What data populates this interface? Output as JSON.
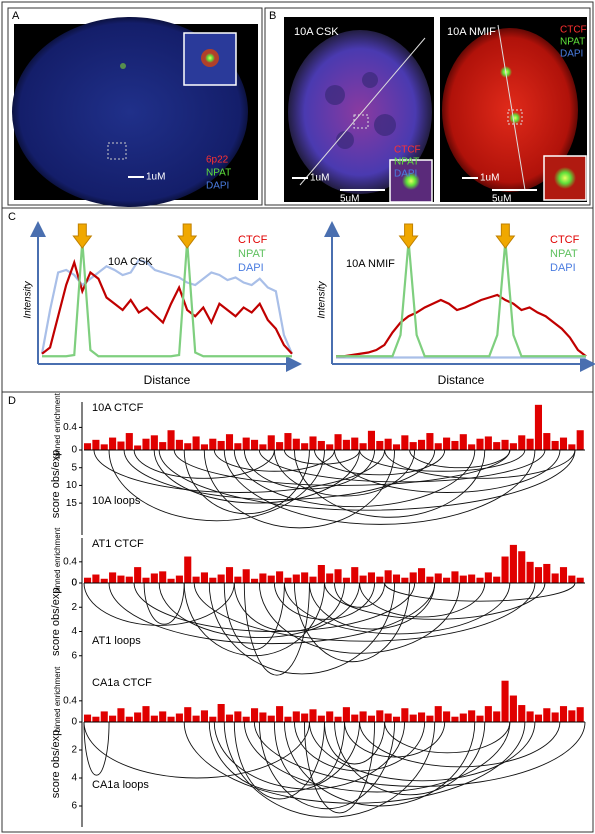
{
  "panel_a": {
    "label": "A",
    "channels": [
      "6p22",
      "NPAT",
      "DAPI"
    ],
    "scale_bar": "1uM"
  },
  "panel_b": {
    "label": "B",
    "images": [
      {
        "title": "10A CSK",
        "channels": [
          "CTCF",
          "NPAT",
          "DAPI"
        ],
        "scale_bars": [
          "1uM",
          "5uM"
        ]
      },
      {
        "title": "10A NMIF",
        "channels": [
          "CTCF",
          "NPAT",
          "DAPI"
        ],
        "scale_bars": [
          "1uM",
          "5uM"
        ]
      }
    ]
  },
  "panel_c": {
    "label": "C",
    "charts": [
      {
        "type": "line",
        "title": "10A CSK",
        "ylabel": "Intensity",
        "xlabel": "Distance",
        "xlim": [
          0,
          31
        ],
        "ylim": [
          0,
          100
        ],
        "x": [
          0,
          1,
          2,
          3,
          4,
          5,
          6,
          7,
          8,
          9,
          10,
          11,
          12,
          13,
          14,
          15,
          16,
          17,
          18,
          19,
          20,
          21,
          22,
          23,
          24,
          25,
          26,
          27,
          28,
          29,
          30,
          31
        ],
        "series": [
          {
            "name": "CTCF",
            "color": "#c00000",
            "values": [
              5,
              10,
              35,
              60,
              78,
              55,
              70,
              65,
              50,
              45,
              40,
              48,
              38,
              42,
              36,
              30,
              45,
              58,
              40,
              35,
              42,
              30,
              45,
              40,
              35,
              42,
              38,
              45,
              32,
              25,
              12,
              5
            ]
          },
          {
            "name": "NPAT",
            "color": "#7fcf7f",
            "values": [
              3,
              3,
              3,
              3,
              4,
              95,
              8,
              3,
              3,
              3,
              3,
              3,
              3,
              3,
              3,
              3,
              3,
              4,
              95,
              6,
              3,
              3,
              3,
              3,
              3,
              3,
              3,
              3,
              3,
              3,
              3,
              3
            ]
          },
          {
            "name": "DAPI",
            "color": "#a9bfe8",
            "values": [
              5,
              40,
              70,
              72,
              68,
              60,
              65,
              70,
              75,
              72,
              68,
              70,
              80,
              78,
              72,
              70,
              68,
              66,
              62,
              60,
              65,
              70,
              68,
              64,
              66,
              62,
              60,
              65,
              58,
              55,
              20,
              5
            ]
          }
        ]
      },
      {
        "type": "line",
        "title": "10A NMIF",
        "ylabel": "Intensity",
        "xlabel": "Distance",
        "xlim": [
          0,
          31
        ],
        "ylim": [
          0,
          100
        ],
        "x": [
          0,
          1,
          2,
          3,
          4,
          5,
          6,
          7,
          8,
          9,
          10,
          11,
          12,
          13,
          14,
          15,
          16,
          17,
          18,
          19,
          20,
          21,
          22,
          23,
          24,
          25,
          26,
          27,
          28,
          29,
          30,
          31
        ],
        "series": [
          {
            "name": "CTCF",
            "color": "#c00000",
            "values": [
              3,
              3,
              4,
              5,
              6,
              8,
              12,
              22,
              30,
              35,
              38,
              42,
              45,
              48,
              45,
              40,
              42,
              45,
              48,
              50,
              52,
              48,
              45,
              40,
              42,
              38,
              35,
              30,
              25,
              18,
              8,
              3
            ]
          },
          {
            "name": "NPAT",
            "color": "#7fcf7f",
            "values": [
              3,
              3,
              3,
              3,
              3,
              3,
              3,
              3,
              20,
              95,
              20,
              3,
              3,
              3,
              3,
              3,
              3,
              3,
              3,
              3,
              20,
              95,
              20,
              3,
              3,
              3,
              3,
              3,
              3,
              3,
              3,
              3
            ]
          },
          {
            "name": "DAPI",
            "color": "#a9bfe8",
            "values": [
              2,
              2,
              2,
              2,
              2,
              2,
              2,
              2,
              2,
              2,
              2,
              2,
              2,
              2,
              2,
              2,
              2,
              2,
              2,
              2,
              2,
              2,
              2,
              2,
              2,
              2,
              2,
              2,
              2,
              2,
              2,
              2
            ]
          }
        ]
      }
    ]
  },
  "panel_d": {
    "label": "D",
    "tracks": [
      {
        "enrichment": {
          "type": "bar",
          "title": "10A CTCF",
          "ylabel": "binned enrichment",
          "ylim": [
            0,
            0.85
          ],
          "yticks": [
            0.4,
            0
          ],
          "color": "#e00000",
          "values": [
            0.12,
            0.18,
            0.1,
            0.22,
            0.15,
            0.3,
            0.08,
            0.2,
            0.26,
            0.14,
            0.35,
            0.18,
            0.12,
            0.24,
            0.1,
            0.2,
            0.16,
            0.28,
            0.12,
            0.22,
            0.18,
            0.1,
            0.26,
            0.14,
            0.3,
            0.2,
            0.12,
            0.24,
            0.16,
            0.1,
            0.28,
            0.18,
            0.22,
            0.12,
            0.34,
            0.16,
            0.2,
            0.1,
            0.26,
            0.14,
            0.18,
            0.3,
            0.12,
            0.22,
            0.16,
            0.28,
            0.1,
            0.2,
            0.24,
            0.14,
            0.18,
            0.12,
            0.26,
            0.2,
            0.8,
            0.3,
            0.16,
            0.22,
            0.1,
            0.35
          ]
        },
        "loops": {
          "type": "arc",
          "title": "10A loops",
          "ylabel": "score obs/exp",
          "xlim": [
            0,
            100
          ],
          "ylim": [
            0,
            24
          ],
          "yticks": [
            5,
            10,
            15
          ],
          "loops": [
            {
              "start": 2,
              "end": 60,
              "score": 12
            },
            {
              "start": 5,
              "end": 48,
              "score": 20
            },
            {
              "start": 8,
              "end": 70,
              "score": 14
            },
            {
              "start": 10,
              "end": 38,
              "score": 8
            },
            {
              "start": 14,
              "end": 55,
              "score": 15
            },
            {
              "start": 18,
              "end": 85,
              "score": 10
            },
            {
              "start": 20,
              "end": 45,
              "score": 18
            },
            {
              "start": 24,
              "end": 62,
              "score": 22
            },
            {
              "start": 26,
              "end": 50,
              "score": 6
            },
            {
              "start": 30,
              "end": 78,
              "score": 16
            },
            {
              "start": 32,
              "end": 58,
              "score": 11
            },
            {
              "start": 35,
              "end": 92,
              "score": 9
            },
            {
              "start": 38,
              "end": 66,
              "score": 13
            },
            {
              "start": 40,
              "end": 55,
              "score": 4
            },
            {
              "start": 42,
              "end": 80,
              "score": 19
            },
            {
              "start": 46,
              "end": 72,
              "score": 7
            },
            {
              "start": 50,
              "end": 95,
              "score": 12
            },
            {
              "start": 55,
              "end": 88,
              "score": 6
            },
            {
              "start": 60,
              "end": 98,
              "score": 8
            },
            {
              "start": 65,
              "end": 85,
              "score": 5
            },
            {
              "start": 15,
              "end": 98,
              "score": 17
            },
            {
              "start": 28,
              "end": 90,
              "score": 21
            }
          ]
        }
      },
      {
        "enrichment": {
          "type": "bar",
          "title": "AT1 CTCF",
          "ylabel": "binned enrichment",
          "ylim": [
            0,
            0.85
          ],
          "yticks": [
            0.4,
            0
          ],
          "color": "#e00000",
          "values": [
            0.1,
            0.16,
            0.08,
            0.2,
            0.14,
            0.12,
            0.3,
            0.1,
            0.18,
            0.22,
            0.08,
            0.14,
            0.5,
            0.12,
            0.2,
            0.1,
            0.16,
            0.3,
            0.12,
            0.26,
            0.08,
            0.18,
            0.14,
            0.22,
            0.1,
            0.16,
            0.2,
            0.12,
            0.34,
            0.18,
            0.26,
            0.1,
            0.3,
            0.14,
            0.2,
            0.12,
            0.24,
            0.16,
            0.1,
            0.2,
            0.28,
            0.12,
            0.18,
            0.1,
            0.22,
            0.14,
            0.16,
            0.1,
            0.2,
            0.12,
            0.5,
            0.72,
            0.6,
            0.4,
            0.3,
            0.36,
            0.18,
            0.3,
            0.14,
            0.1
          ]
        },
        "loops": {
          "type": "arc",
          "title": "AT1 loops",
          "ylabel": "score obs/exp",
          "xlim": [
            0,
            100
          ],
          "ylim": [
            0,
            8
          ],
          "yticks": [
            0,
            2,
            4,
            6
          ],
          "loops": [
            {
              "start": 0,
              "end": 30,
              "score": 3.5
            },
            {
              "start": 5,
              "end": 70,
              "score": 5
            },
            {
              "start": 12,
              "end": 20,
              "score": 3.4
            },
            {
              "start": 15,
              "end": 55,
              "score": 4.5
            },
            {
              "start": 20,
              "end": 48,
              "score": 6
            },
            {
              "start": 25,
              "end": 62,
              "score": 7.5
            },
            {
              "start": 28,
              "end": 40,
              "score": 5.5
            },
            {
              "start": 30,
              "end": 52,
              "score": 4
            },
            {
              "start": 35,
              "end": 75,
              "score": 5.8
            },
            {
              "start": 38,
              "end": 58,
              "score": 3
            },
            {
              "start": 40,
              "end": 85,
              "score": 4.2
            },
            {
              "start": 42,
              "end": 65,
              "score": 6.5
            },
            {
              "start": 45,
              "end": 70,
              "score": 3.8
            },
            {
              "start": 48,
              "end": 92,
              "score": 3
            },
            {
              "start": 50,
              "end": 60,
              "score": 2
            },
            {
              "start": 55,
              "end": 80,
              "score": 2.8
            },
            {
              "start": 60,
              "end": 98,
              "score": 1.5
            },
            {
              "start": 32,
              "end": 45,
              "score": 7.6
            },
            {
              "start": 22,
              "end": 90,
              "score": 4.8
            },
            {
              "start": 10,
              "end": 66,
              "score": 4
            }
          ]
        }
      },
      {
        "enrichment": {
          "type": "bar",
          "title": "CA1a CTCF",
          "ylabel": "binned enrichment",
          "ylim": [
            0,
            0.85
          ],
          "yticks": [
            0.4,
            0
          ],
          "color": "#e00000",
          "values": [
            0.14,
            0.1,
            0.2,
            0.12,
            0.26,
            0.1,
            0.18,
            0.3,
            0.12,
            0.2,
            0.1,
            0.16,
            0.28,
            0.12,
            0.22,
            0.1,
            0.34,
            0.14,
            0.2,
            0.1,
            0.26,
            0.18,
            0.12,
            0.3,
            0.1,
            0.2,
            0.16,
            0.24,
            0.12,
            0.2,
            0.1,
            0.28,
            0.14,
            0.2,
            0.12,
            0.22,
            0.16,
            0.1,
            0.26,
            0.14,
            0.18,
            0.12,
            0.3,
            0.2,
            0.1,
            0.16,
            0.22,
            0.12,
            0.3,
            0.2,
            0.78,
            0.5,
            0.32,
            0.2,
            0.14,
            0.26,
            0.18,
            0.3,
            0.22,
            0.28
          ]
        },
        "loops": {
          "type": "arc",
          "title": "CA1a loops",
          "ylabel": "score obs/exp",
          "xlim": [
            0,
            100
          ],
          "ylim": [
            0,
            7.5
          ],
          "yticks": [
            2,
            4,
            6
          ],
          "loops": [
            {
              "start": 0,
              "end": 5,
              "score": 3.8
            },
            {
              "start": 0,
              "end": 45,
              "score": 4
            },
            {
              "start": 25,
              "end": 55,
              "score": 5
            },
            {
              "start": 28,
              "end": 70,
              "score": 6.8
            },
            {
              "start": 30,
              "end": 48,
              "score": 5.5
            },
            {
              "start": 32,
              "end": 85,
              "score": 5
            },
            {
              "start": 35,
              "end": 62,
              "score": 6.2
            },
            {
              "start": 38,
              "end": 52,
              "score": 4.5
            },
            {
              "start": 40,
              "end": 78,
              "score": 6
            },
            {
              "start": 42,
              "end": 68,
              "score": 3.5
            },
            {
              "start": 45,
              "end": 90,
              "score": 4.2
            },
            {
              "start": 48,
              "end": 60,
              "score": 3
            },
            {
              "start": 50,
              "end": 80,
              "score": 5.2
            },
            {
              "start": 52,
              "end": 72,
              "score": 2.5
            },
            {
              "start": 55,
              "end": 95,
              "score": 3.2
            },
            {
              "start": 60,
              "end": 85,
              "score": 2.2
            },
            {
              "start": 34,
              "end": 100,
              "score": 4.6
            },
            {
              "start": 26,
              "end": 64,
              "score": 4.8
            },
            {
              "start": 20,
              "end": 88,
              "score": 5.8
            },
            {
              "start": 44,
              "end": 58,
              "score": 6.5
            }
          ]
        }
      }
    ]
  }
}
